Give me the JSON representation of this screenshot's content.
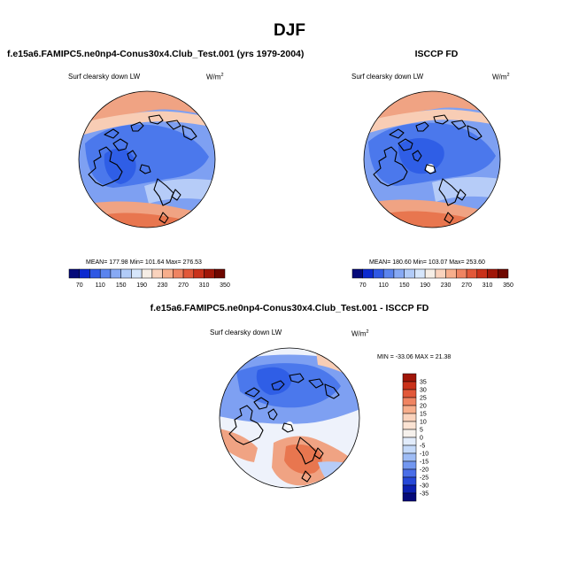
{
  "title": "DJF",
  "panels": {
    "left": {
      "title": "f.e15a6.FAMIPC5.ne0np4-Conus30x4.Club_Test.001 (yrs 1979-2004)",
      "variable": "Surf clearsky down LW",
      "units_base": "W/m",
      "units_exp": "2",
      "stats": "MEAN= 177.98  Min= 101.64  Max= 276.53"
    },
    "right": {
      "title": "ISCCP FD",
      "variable": "Surf clearsky down LW",
      "units_base": "W/m",
      "units_exp": "2",
      "stats": "MEAN= 180.60  Min= 103.07  Max= 253.60"
    },
    "diff": {
      "title": "f.e15a6.FAMIPC5.ne0np4-Conus30x4.Club_Test.001 - ISCCP FD",
      "variable": "Surf clearsky down LW",
      "units_base": "W/m",
      "units_exp": "2",
      "stats": "MIN = -33.06 MAX =  21.38"
    }
  },
  "colorbars": {
    "absolute": {
      "labels": [
        "70",
        "110",
        "150",
        "190",
        "230",
        "270",
        "310",
        "350"
      ],
      "colors": [
        "#050a7a",
        "#0c2ad0",
        "#2f58e4",
        "#5b84ee",
        "#87a9f4",
        "#b1cbf8",
        "#d6e6fb",
        "#f6eee6",
        "#fad3bd",
        "#f7ae8c",
        "#ef8462",
        "#e25839",
        "#c9311a",
        "#a01608",
        "#6e0700"
      ]
    },
    "difference": {
      "labels": [
        "35",
        "30",
        "25",
        "20",
        "15",
        "10",
        "5",
        "0",
        "-5",
        "-10",
        "-15",
        "-20",
        "-25",
        "-30",
        "-35"
      ],
      "colors": [
        "#a01608",
        "#c9311a",
        "#e25839",
        "#ef8462",
        "#f7ae8c",
        "#fad3bd",
        "#fbe3d3",
        "#f6f1ec",
        "#e2ecfb",
        "#c4d9f9",
        "#9ebcf5",
        "#7297f0",
        "#4a6ee8",
        "#2648d8",
        "#0c20b0",
        "#050a7a"
      ]
    }
  },
  "map_colors": {
    "cold_deep": "#2f5ee6",
    "cold": "#4b78ec",
    "cool": "#7ea0f2",
    "cool_light": "#b6ccf8",
    "neutral": "#eef2fb",
    "warm_light": "#f8cdb5",
    "warm": "#f0a383",
    "hot": "#e8764f",
    "coast": "#000000"
  }
}
